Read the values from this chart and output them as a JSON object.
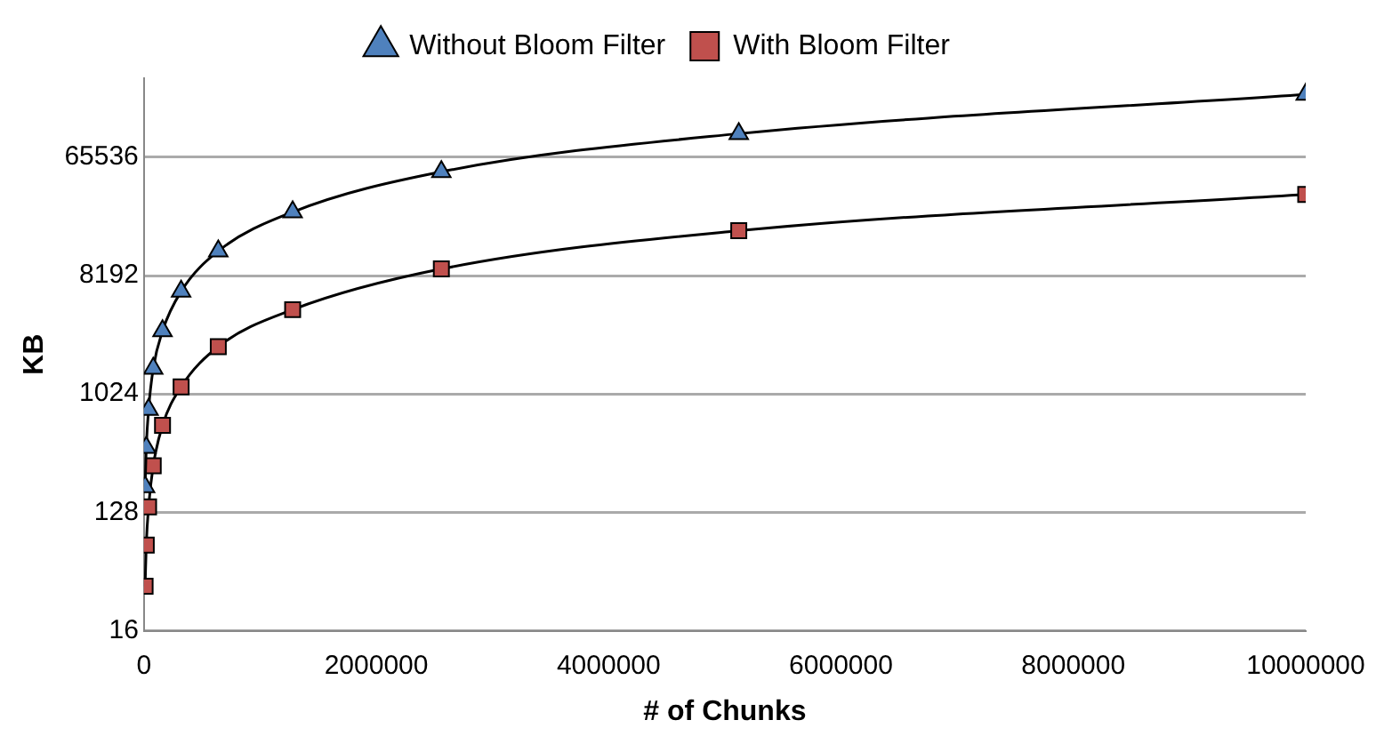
{
  "chart_data": {
    "type": "line",
    "xlabel": "# of Chunks",
    "ylabel": "KB",
    "log": "y",
    "grid": "y",
    "legend": "top",
    "x": [
      10000,
      20000,
      40000,
      80000,
      160000,
      320000,
      640000,
      1280000,
      2560000,
      5120000,
      10000000
    ],
    "xlim": [
      0,
      10000000
    ],
    "xticks": [
      0,
      2000000,
      4000000,
      6000000,
      8000000,
      10000000
    ],
    "ylim": [
      16,
      262144
    ],
    "yticks": [
      16,
      128,
      1024,
      8192,
      65536
    ],
    "series": [
      {
        "name": "Without Bloom Filter",
        "color": "#4f81bd",
        "marker": "triangle",
        "values": [
          200,
          400,
          780,
          1600,
          3100,
          6200,
          12600,
          25000,
          50700,
          99000,
          197000
        ]
      },
      {
        "name": "With Bloom Filter",
        "color": "#c0504d",
        "marker": "square",
        "values": [
          35,
          72,
          141,
          290,
          590,
          1160,
          2350,
          4500,
          9200,
          18000,
          34000
        ]
      }
    ]
  }
}
